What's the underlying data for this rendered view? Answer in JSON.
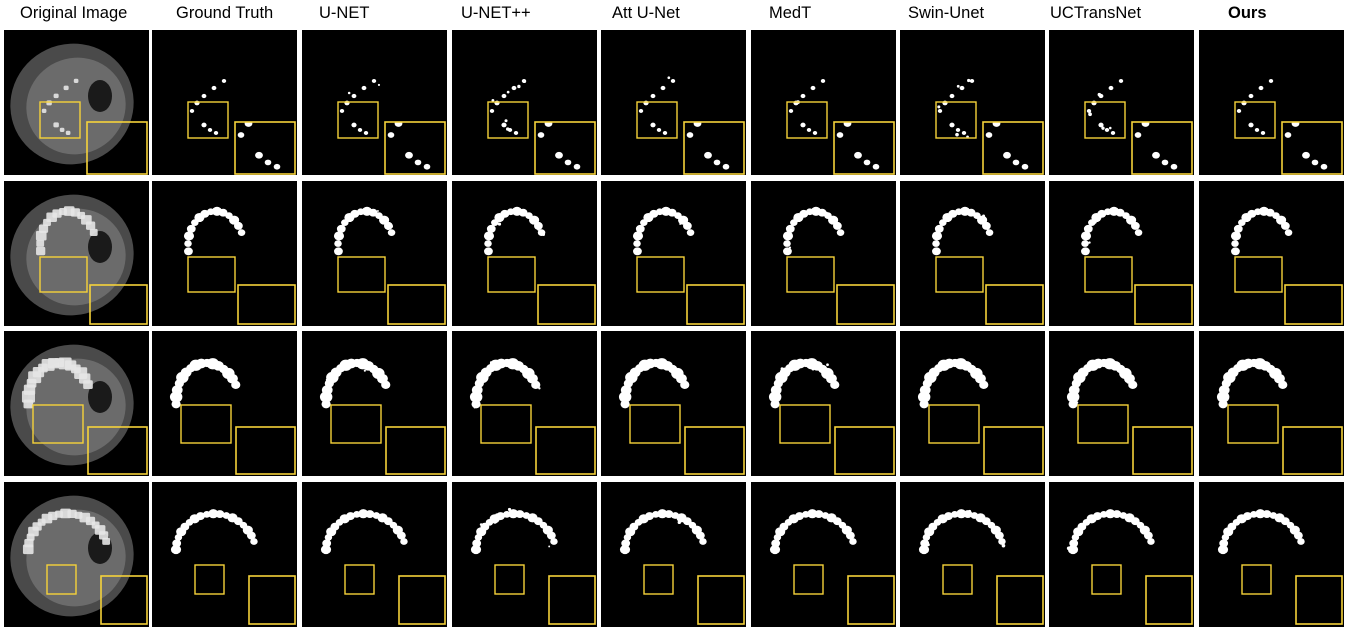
{
  "figure": {
    "columns": [
      {
        "label": "Original Image",
        "emphasis": false,
        "kind": "ct"
      },
      {
        "label": "Ground Truth",
        "emphasis": false,
        "kind": "mask",
        "noise": 0
      },
      {
        "label": "U-NET",
        "emphasis": false,
        "kind": "mask",
        "noise": 3
      },
      {
        "label": "U-NET++",
        "emphasis": false,
        "kind": "mask",
        "noise": 4
      },
      {
        "label": "Att U-Net",
        "emphasis": false,
        "kind": "mask",
        "noise": 3
      },
      {
        "label": "MedT",
        "emphasis": false,
        "kind": "mask",
        "noise": 2
      },
      {
        "label": "Swin-Unet",
        "emphasis": false,
        "kind": "mask",
        "noise": 5
      },
      {
        "label": "UCTransNet",
        "emphasis": false,
        "kind": "mask",
        "noise": 2
      },
      {
        "label": "Ours",
        "emphasis": true,
        "kind": "mask",
        "noise": 0
      }
    ],
    "rows": [
      {
        "variant": "sparse"
      },
      {
        "variant": "arc-medium"
      },
      {
        "variant": "arc-large"
      },
      {
        "variant": "arc-c"
      }
    ],
    "colors": {
      "background": "#ffffff",
      "cell_background": "#000000",
      "zoom_box": "#f5d23a",
      "mask": "#ffffff",
      "ct_tissue": "#8a8a8a",
      "ct_bone": "#e6e6e6"
    }
  }
}
